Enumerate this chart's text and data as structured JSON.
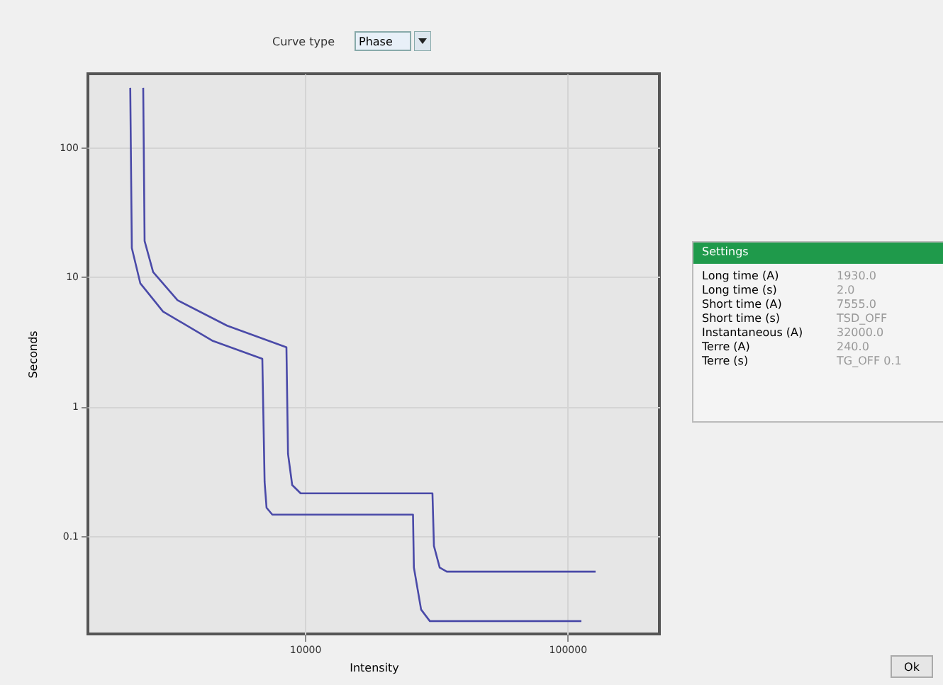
{
  "chart_data": {
    "type": "line",
    "xlabel": "Intensity",
    "ylabel": "Seconds",
    "log": "xy",
    "grid": true,
    "legend": false,
    "xlim": [
      1490,
      224000
    ],
    "ylim": [
      0.0175,
      370
    ],
    "xticks": [
      10000,
      100000
    ],
    "yticks": [
      0.1,
      1,
      10,
      100
    ],
    "series": [
      {
        "color": "#4a4aa8",
        "x": [
          2420,
          2450,
          2640,
          3270,
          5050,
          8500,
          8620,
          8940,
          9630,
          30600,
          31000,
          32600,
          34700,
          128000
        ],
        "values": [
          288,
          18.9,
          10.9,
          6.6,
          4.2,
          2.86,
          0.43,
          0.247,
          0.213,
          0.213,
          0.0836,
          0.057,
          0.053,
          0.053
        ]
      },
      {
        "color": "#4a4aa8",
        "x": [
          2160,
          2190,
          2360,
          2880,
          4460,
          6880,
          7020,
          7140,
          7510,
          25800,
          26000,
          27700,
          29900,
          113000
        ],
        "values": [
          288,
          16.7,
          8.9,
          5.4,
          3.2,
          2.33,
          0.26,
          0.165,
          0.146,
          0.146,
          0.057,
          0.027,
          0.022,
          0.022
        ]
      }
    ],
    "annotations": [
      "Curve type",
      "Phase",
      "Settings",
      "Long time (A)",
      "1930.0",
      "Long time (s)",
      "2.0",
      "Short time (A)",
      "7555.0",
      "Short time (s)",
      "TSD_OFF",
      "Instantaneous (A)",
      "32000.0",
      "Terre (A)",
      "240.0",
      "Terre (s)",
      "TG_OFF 0.1",
      "Ok"
    ]
  }
}
